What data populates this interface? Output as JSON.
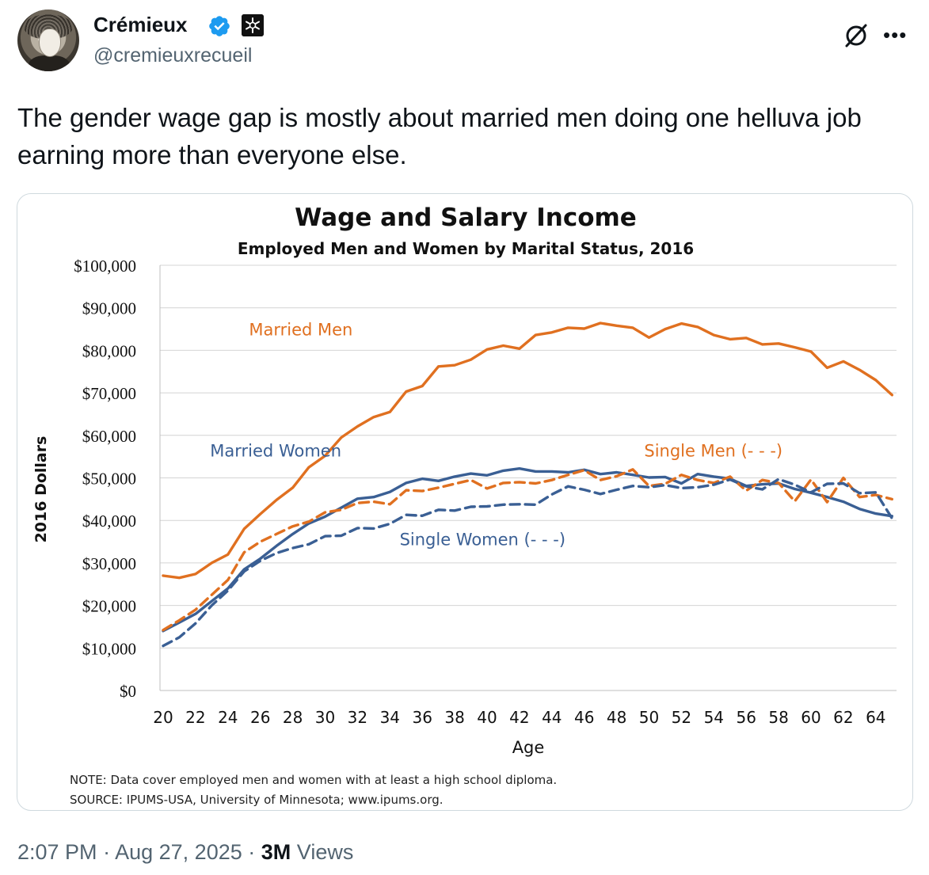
{
  "author": {
    "name": "Crémieux",
    "handle": "@cremieuxrecueil"
  },
  "tweet": {
    "text": "The gender wage gap is mostly about married men doing one helluva job earning more than everyone else."
  },
  "footer": {
    "time": "2:07 PM",
    "date": "Aug 27, 2025",
    "views_count": "3M",
    "views_label": "Views"
  },
  "icons": [
    "verified-badge-icon",
    "affiliation-badge-icon",
    "grok-icon",
    "more-icon"
  ],
  "colors": {
    "orange": "#E07020",
    "blue": "#3A5F94",
    "link_blue": "#1d9bf0"
  },
  "chart_data": {
    "type": "line",
    "title": "Wage and Salary Income",
    "subtitle": "Employed Men and Women by Marital Status, 2016",
    "xlabel": "Age",
    "ylabel": "2016 Dollars",
    "xlim": [
      20,
      65
    ],
    "ylim": [
      0,
      100000
    ],
    "x_ticks": [
      20,
      22,
      24,
      26,
      28,
      30,
      32,
      34,
      36,
      38,
      40,
      42,
      44,
      46,
      48,
      50,
      52,
      54,
      56,
      58,
      60,
      62,
      64
    ],
    "y_ticks": [
      "$0",
      "$10,000",
      "$20,000",
      "$30,000",
      "$40,000",
      "$50,000",
      "$60,000",
      "$70,000",
      "$80,000",
      "$90,000",
      "$100,000"
    ],
    "grid": "horizontal",
    "note": "NOTE: Data cover employed men and women with at least a high school diploma.",
    "source": "SOURCE: IPUMS-USA,  University of Minnesota; www.ipums.org.",
    "x": [
      20,
      21,
      22,
      23,
      24,
      25,
      26,
      27,
      28,
      29,
      30,
      31,
      32,
      33,
      34,
      35,
      36,
      37,
      38,
      39,
      40,
      41,
      42,
      43,
      44,
      45,
      46,
      47,
      48,
      49,
      50,
      51,
      52,
      53,
      54,
      55,
      56,
      57,
      58,
      59,
      60,
      61,
      62,
      63,
      64,
      65
    ],
    "series": [
      {
        "name": "Married Men",
        "color": "#E07020",
        "dash": false,
        "label_pos": [
          25.3,
          83500
        ],
        "values": [
          27000,
          26500,
          27400,
          30000,
          32000,
          38000,
          41500,
          44800,
          47700,
          52500,
          55200,
          59500,
          62100,
          64300,
          65500,
          70300,
          71600,
          76200,
          76500,
          77800,
          80200,
          81100,
          80400,
          83600,
          84200,
          85300,
          85100,
          86400,
          85800,
          85300,
          83000,
          85000,
          86300,
          85500,
          83600,
          82600,
          82900,
          81400,
          81600,
          80700,
          79700,
          75900,
          77400,
          75400,
          73000,
          69500
        ]
      },
      {
        "name": "Married Women",
        "color": "#3A5F94",
        "dash": false,
        "label_pos": [
          22.9,
          55000
        ],
        "values": [
          14000,
          16000,
          18000,
          21000,
          24000,
          28500,
          31000,
          34000,
          36800,
          39300,
          40900,
          43000,
          45100,
          45500,
          46700,
          48800,
          49800,
          49300,
          50300,
          51000,
          50600,
          51700,
          52200,
          51500,
          51500,
          51300,
          51900,
          50900,
          51300,
          50700,
          50100,
          50200,
          48700,
          50900,
          50300,
          49800,
          48100,
          48500,
          48700,
          47400,
          46500,
          45500,
          44400,
          42700,
          41600,
          41000
        ]
      },
      {
        "name": "Single Men (- - -)",
        "color": "#E07020",
        "dash": true,
        "label_pos": [
          49.7,
          55000
        ],
        "values": [
          14200,
          16500,
          19000,
          22500,
          26000,
          32500,
          35000,
          36800,
          38600,
          39700,
          41900,
          42500,
          44100,
          44400,
          43800,
          47100,
          46900,
          47700,
          48600,
          49500,
          47500,
          48800,
          49000,
          48700,
          49500,
          50700,
          51800,
          49500,
          50400,
          52000,
          48100,
          48600,
          50700,
          49500,
          48800,
          50300,
          47000,
          49500,
          48800,
          44500,
          49600,
          44300,
          50000,
          45500,
          46000,
          45000
        ]
      },
      {
        "name": "Single Women (- - -)",
        "color": "#3A5F94",
        "dash": true,
        "label_pos": [
          34.6,
          34200
        ],
        "values": [
          10500,
          12500,
          15800,
          20000,
          23500,
          28000,
          30500,
          32300,
          33500,
          34400,
          36300,
          36400,
          38200,
          38100,
          39200,
          41300,
          41100,
          42500,
          42300,
          43200,
          43300,
          43700,
          43800,
          43700,
          46100,
          48000,
          47200,
          46200,
          47200,
          48100,
          47800,
          48300,
          47600,
          47800,
          48400,
          49600,
          48000,
          47300,
          49700,
          48400,
          46600,
          48600,
          48700,
          46400,
          46600,
          40500
        ]
      }
    ]
  }
}
